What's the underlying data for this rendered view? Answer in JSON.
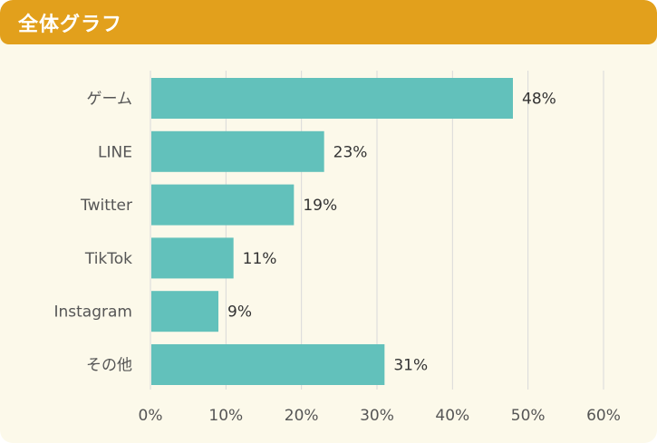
{
  "header": {
    "title": "全体グラフ"
  },
  "colors": {
    "header": "#e2a01c",
    "background": "#fcf9ea",
    "bar": "#62c1bb",
    "grid": "#d9d9d9"
  },
  "chart_data": {
    "type": "bar",
    "orientation": "horizontal",
    "categories": [
      "ゲーム",
      "LINE",
      "Twitter",
      "TikTok",
      "Instagram",
      "その他"
    ],
    "values": [
      48,
      23,
      19,
      11,
      9,
      31
    ],
    "value_labels": [
      "48%",
      "23%",
      "19%",
      "11%",
      "9%",
      "31%"
    ],
    "xlim": [
      0,
      60
    ],
    "xticks": [
      0,
      10,
      20,
      30,
      40,
      50,
      60
    ],
    "xtick_labels": [
      "0%",
      "10%",
      "20%",
      "30%",
      "40%",
      "50%",
      "60%"
    ],
    "grid": true
  }
}
